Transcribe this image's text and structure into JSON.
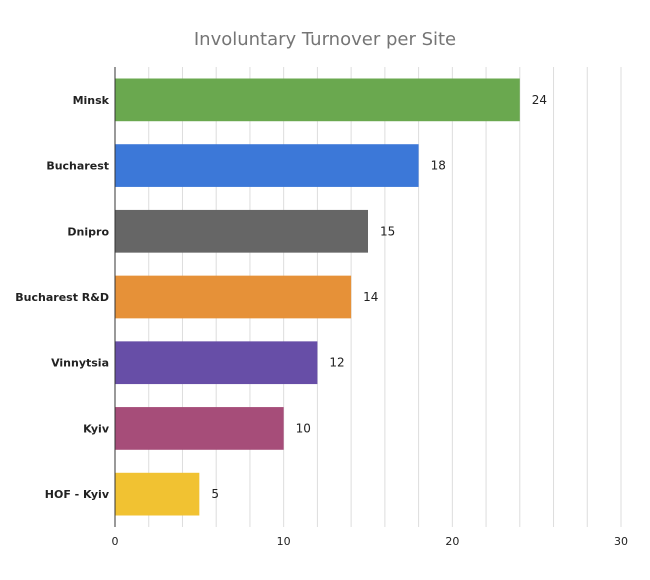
{
  "chart_data": {
    "type": "bar",
    "orientation": "horizontal",
    "title": "Involuntary Turnover per Site",
    "xlabel": "",
    "ylabel": "",
    "categories": [
      "Minsk",
      "Bucharest",
      "Dnipro",
      "Bucharest R&D",
      "Vinnytsia",
      "Kyiv",
      "HOF - Kyiv"
    ],
    "values": [
      24,
      18,
      15,
      14,
      12,
      10,
      5
    ],
    "colors": [
      "#6aa84f",
      "#3c78d8",
      "#666666",
      "#e69138",
      "#674ea7",
      "#a64d79",
      "#f1c232"
    ],
    "xlim": [
      0,
      30
    ],
    "xticks": [
      0,
      10,
      20,
      30
    ],
    "grid": true,
    "data_labels": true
  }
}
